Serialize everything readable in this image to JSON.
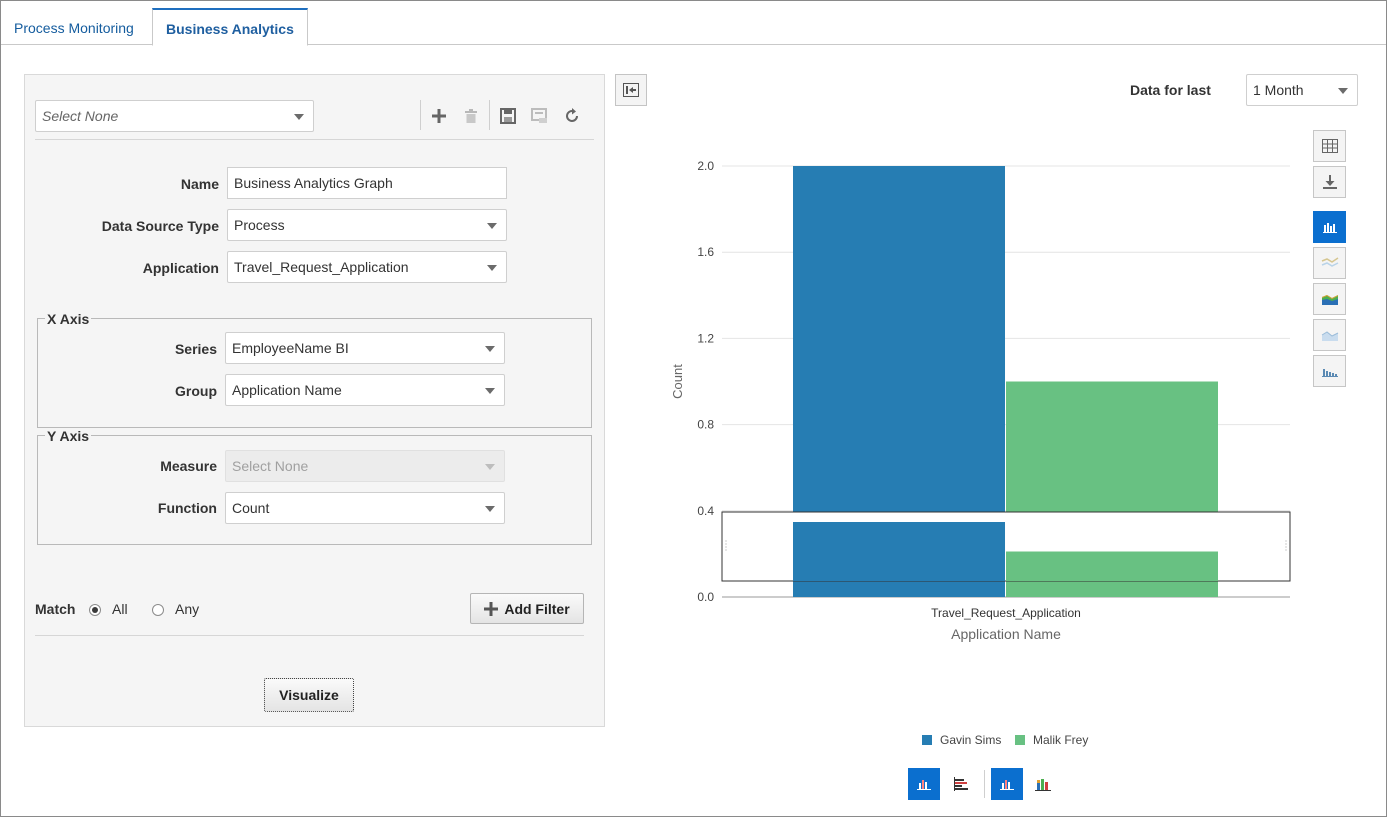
{
  "tabs": [
    {
      "label": "Process Monitoring"
    },
    {
      "label": "Business Analytics"
    }
  ],
  "left_panel": {
    "selector": {
      "value": "Select None"
    },
    "toolbar": {
      "icons": [
        "add-icon",
        "delete-icon",
        "save-icon",
        "save-as-icon",
        "refresh-icon"
      ]
    },
    "fields": {
      "name_label": "Name",
      "name_value": "Business Analytics Graph",
      "source_label": "Data Source Type",
      "source_value": "Process",
      "app_label": "Application",
      "app_value": "Travel_Request_Application"
    },
    "x_axis": {
      "legend": "X Axis",
      "series_label": "Series",
      "series_value": "EmployeeName BI",
      "group_label": "Group",
      "group_value": "Application Name"
    },
    "y_axis": {
      "legend": "Y Axis",
      "measure_label": "Measure",
      "measure_value": "Select None",
      "function_label": "Function",
      "function_value": "Count"
    },
    "match": {
      "label": "Match",
      "all": "All",
      "any": "Any",
      "selected": "All"
    },
    "add_filter": "Add Filter",
    "visualize": "Visualize"
  },
  "right_panel": {
    "data_for_last_label": "Data for last",
    "data_for_last_value": "1 Month",
    "side_tools": [
      "table-icon",
      "download-icon",
      "bar-chart-icon",
      "line-chart-icon",
      "area-chart-icon",
      "stacked-area-icon",
      "histogram-icon"
    ],
    "bottom_tools": [
      "vertical-bar-icon",
      "horizontal-bar-icon",
      "clustered-bar-icon",
      "stacked-bar-icon"
    ]
  },
  "colors": {
    "series1": "#267db3",
    "series2": "#68c182",
    "accent": "#0b6fcf"
  },
  "chart_data": {
    "type": "bar",
    "categories": [
      "Travel_Request_Application"
    ],
    "series": [
      {
        "name": "Gavin Sims",
        "values": [
          2.0
        ]
      },
      {
        "name": "Malik Frey",
        "values": [
          1.0
        ]
      }
    ],
    "ylabel": "Count",
    "xlabel": "Application Name",
    "ylim": [
      0,
      2.0
    ],
    "yticks": [
      "0.0",
      "0.4",
      "0.8",
      "1.2",
      "1.6",
      "2.0"
    ],
    "grid": true,
    "legend": "bottom"
  }
}
